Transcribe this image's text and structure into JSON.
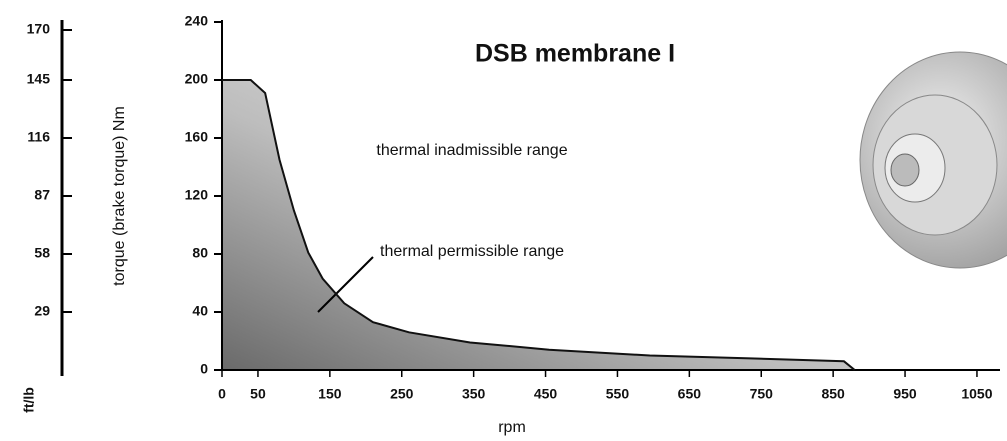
{
  "chart_data": {
    "type": "area",
    "title": "DSB membrane I",
    "xlabel": "rpm",
    "ylabel": "torque (brake torque) Nm",
    "y2label": "ft/lb",
    "annotations": [
      "thermal inadmissible range",
      "thermal permissible range"
    ],
    "x": [
      0,
      40,
      60,
      80,
      100,
      120,
      140,
      170,
      210,
      260,
      345,
      455,
      595,
      735,
      865,
      880
    ],
    "series": [
      {
        "name": "torque",
        "color": "#555555",
        "values": [
          200,
          200,
          191,
          145,
          110,
          81,
          63,
          46,
          33,
          26,
          19,
          14,
          10,
          8,
          6,
          0
        ]
      }
    ],
    "xlim": [
      0,
      1080
    ],
    "xticks": [
      0,
      50,
      150,
      250,
      350,
      450,
      550,
      650,
      750,
      850,
      950,
      1050
    ],
    "ylim": [
      0,
      240
    ],
    "yticks": [
      0,
      40,
      80,
      120,
      160,
      200,
      240
    ],
    "y2lim": [
      0,
      174
    ],
    "y2ticks": [
      29,
      58,
      87,
      116,
      145,
      170
    ]
  }
}
